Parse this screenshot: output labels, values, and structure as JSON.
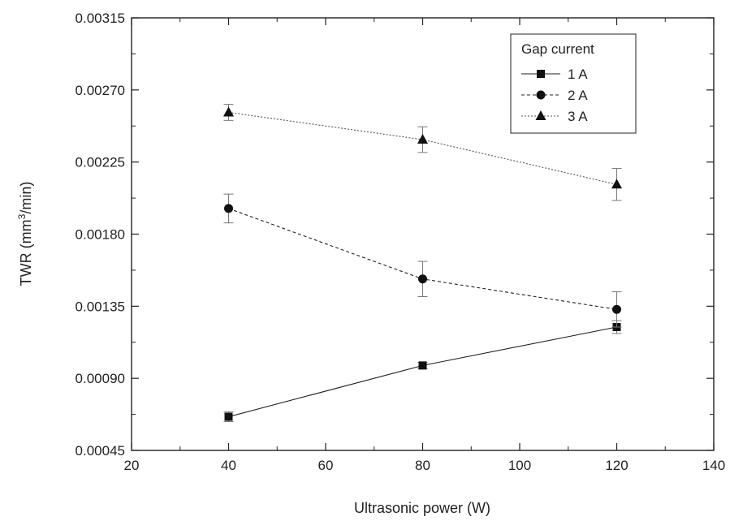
{
  "chart_data": {
    "type": "line",
    "xlabel": "Ultrasonic power (W)",
    "ylabel": {
      "prefix": "TWR (mm",
      "sup": "3",
      "suffix": "/min)"
    },
    "xlim": [
      20,
      140
    ],
    "ylim": [
      0.00045,
      0.00315
    ],
    "x_ticks": [
      20,
      40,
      60,
      80,
      100,
      120,
      140
    ],
    "y_ticks": [
      "0.00045",
      "0.00090",
      "0.00135",
      "0.00180",
      "0.00225",
      "0.00270",
      "0.00315"
    ],
    "grid": false,
    "legend": {
      "title": "Gap current",
      "placement": "top-right"
    },
    "series": [
      {
        "name": "1 A",
        "marker": "square",
        "line_style": "solid",
        "x": [
          40,
          80,
          120
        ],
        "y": [
          0.00066,
          0.00098,
          0.00122
        ],
        "err": [
          3e-05,
          2e-05,
          4e-05
        ]
      },
      {
        "name": "2 A",
        "marker": "circle",
        "line_style": "dashed",
        "x": [
          40,
          80,
          120
        ],
        "y": [
          0.00196,
          0.00152,
          0.00133
        ],
        "err": [
          9e-05,
          0.00011,
          0.00011
        ]
      },
      {
        "name": "3 A",
        "marker": "triangle",
        "line_style": "dotted",
        "x": [
          40,
          80,
          120
        ],
        "y": [
          0.00256,
          0.00239,
          0.00211
        ],
        "err": [
          5e-05,
          8e-05,
          0.0001
        ]
      }
    ]
  }
}
